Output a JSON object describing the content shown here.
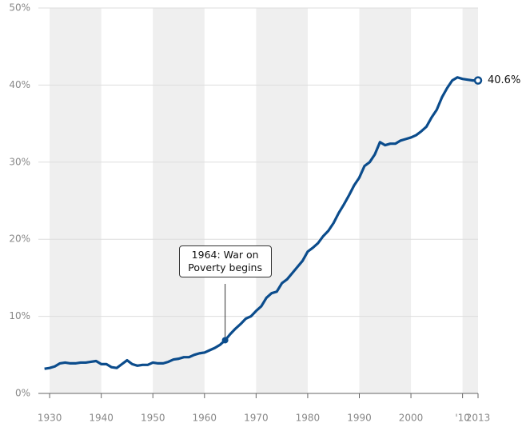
{
  "chart_data": {
    "type": "line",
    "x": [
      1929,
      1930,
      1931,
      1932,
      1933,
      1934,
      1935,
      1936,
      1937,
      1938,
      1939,
      1940,
      1941,
      1942,
      1943,
      1944,
      1945,
      1946,
      1947,
      1948,
      1949,
      1950,
      1951,
      1952,
      1953,
      1954,
      1955,
      1956,
      1957,
      1958,
      1959,
      1960,
      1961,
      1962,
      1963,
      1964,
      1965,
      1966,
      1967,
      1968,
      1969,
      1970,
      1971,
      1972,
      1973,
      1974,
      1975,
      1976,
      1977,
      1978,
      1979,
      1980,
      1981,
      1982,
      1983,
      1984,
      1985,
      1986,
      1987,
      1988,
      1989,
      1990,
      1991,
      1992,
      1993,
      1994,
      1995,
      1996,
      1997,
      1998,
      1999,
      2000,
      2001,
      2002,
      2003,
      2004,
      2005,
      2006,
      2007,
      2008,
      2009,
      2010,
      2011,
      2012,
      2013
    ],
    "series": [
      {
        "color": "#0b4c8c",
        "values": [
          3.2,
          3.3,
          3.5,
          3.9,
          4.0,
          3.9,
          3.9,
          4.0,
          4.0,
          4.1,
          4.2,
          3.8,
          3.8,
          3.4,
          3.3,
          3.8,
          4.3,
          3.8,
          3.6,
          3.7,
          3.7,
          4.0,
          3.9,
          3.9,
          4.1,
          4.4,
          4.5,
          4.7,
          4.7,
          5.0,
          5.2,
          5.3,
          5.6,
          5.9,
          6.3,
          6.9,
          7.7,
          8.4,
          9.0,
          9.7,
          10.0,
          10.7,
          11.3,
          12.4,
          13.0,
          13.2,
          14.3,
          14.8,
          15.6,
          16.4,
          17.2,
          18.4,
          18.9,
          19.5,
          20.4,
          21.1,
          22.1,
          23.4,
          24.5,
          25.7,
          27.0,
          28.0,
          29.5,
          30.0,
          31.0,
          32.6,
          32.2,
          32.4,
          32.4,
          32.8,
          33.0,
          33.2,
          33.5,
          34.0,
          34.6,
          35.8,
          36.8,
          38.4,
          39.6,
          40.6,
          41.0,
          40.8,
          40.7,
          40.6,
          40.6
        ],
        "value_labels": [
          null,
          null,
          null,
          null,
          null,
          null,
          null,
          null,
          null,
          null,
          null,
          null,
          null,
          null,
          null,
          null,
          null,
          null,
          null,
          null,
          null,
          null,
          null,
          null,
          null,
          null,
          null,
          null,
          null,
          null,
          null,
          null,
          null,
          null,
          null,
          null,
          null,
          null,
          null,
          null,
          null,
          null,
          null,
          null,
          null,
          null,
          null,
          null,
          null,
          null,
          null,
          null,
          null,
          null,
          null,
          null,
          null,
          null,
          null,
          null,
          null,
          null,
          null,
          null,
          null,
          null,
          null,
          null,
          null,
          null,
          null,
          null,
          null,
          null,
          null,
          null,
          null,
          null,
          null,
          null,
          null,
          null,
          null,
          null,
          "40.6%"
        ]
      }
    ],
    "annotations": [
      {
        "x": 1964,
        "text": "1964: War on Poverty begins"
      }
    ],
    "xlim": [
      1928.9,
      2013
    ],
    "xticks": [
      1930,
      1940,
      1950,
      1960,
      1970,
      1980,
      1990,
      2000,
      {
        "value": 2010,
        "label": "'10"
      },
      2013
    ],
    "ylim": [
      0,
      50
    ],
    "yticks": [
      {
        "value": 0,
        "label": "0%"
      },
      {
        "value": 10,
        "label": "10%"
      },
      {
        "value": 20,
        "label": "20%"
      },
      {
        "value": 30,
        "label": "30%"
      },
      {
        "value": 40,
        "label": "40%"
      },
      {
        "value": 50,
        "label": "50%"
      }
    ],
    "grid": true
  }
}
